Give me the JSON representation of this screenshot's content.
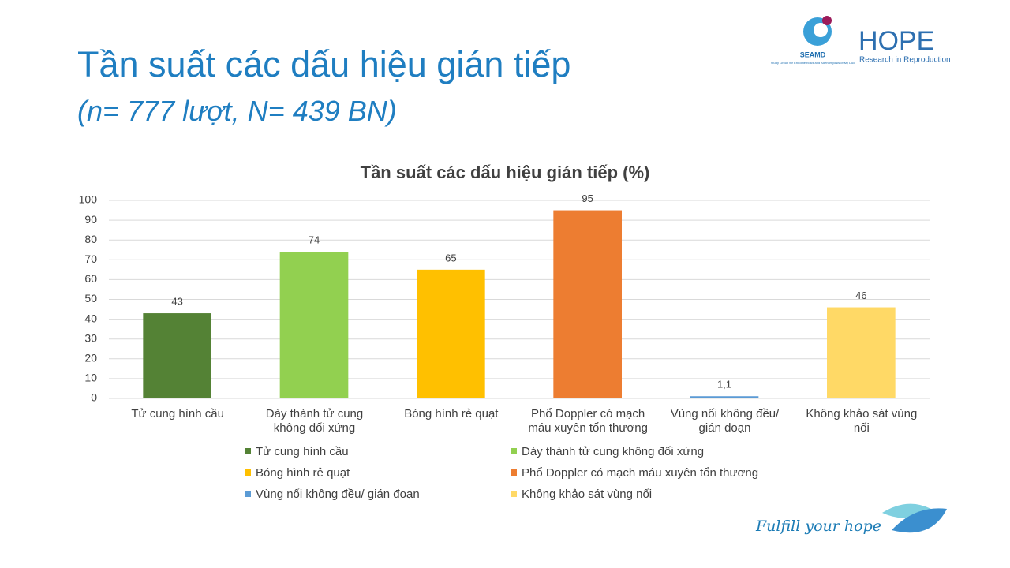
{
  "slide": {
    "title": "Tần suất các dấu hiệu gián tiếp",
    "subtitle": "(n= 777 lượt, N= 439 BN)",
    "logo_seamd": "SEAMD",
    "logo_seamd_tagline": "Study Group for Endometriosis and Adenomyosis of My Duc",
    "logo_hope": "HOPE",
    "logo_hope_tagline": "Research in Reproduction",
    "footer": "Fulfill your hope"
  },
  "chart_data": {
    "type": "bar",
    "title": "Tần suất các dấu hiệu gián tiếp (%)",
    "categories": [
      "Tử cung hình cầu",
      "Dày thành tử cung không đối xứng",
      "Bóng hình rẻ quạt",
      "Phổ Doppler có mạch máu xuyên tổn thương",
      "Vùng nối không đều/ gián đoạn",
      "Không khảo sát vùng nối"
    ],
    "values": [
      43,
      74,
      65,
      95,
      1.1,
      46
    ],
    "value_labels": [
      "43",
      "74",
      "65",
      "95",
      "1,1",
      "46"
    ],
    "colors": [
      "#548235",
      "#92d050",
      "#ffc000",
      "#ed7d31",
      "#5b9bd5",
      "#ffd966"
    ],
    "ylim": [
      0,
      100
    ],
    "yticks": [
      0,
      10,
      20,
      30,
      40,
      50,
      60,
      70,
      80,
      90,
      100
    ],
    "grid": true,
    "legend": "bottom"
  }
}
